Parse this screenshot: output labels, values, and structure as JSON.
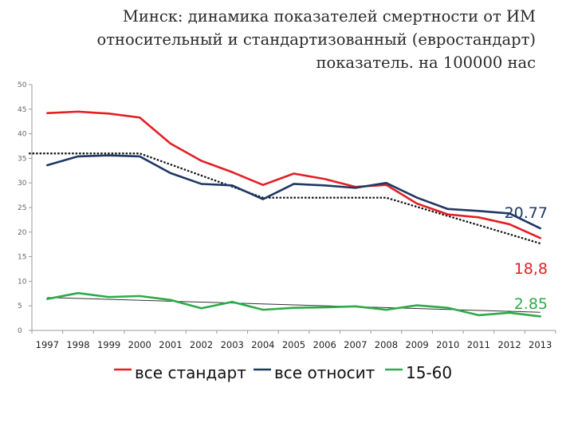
{
  "title": {
    "line1": "Минск: динамика показателей смертности от ИМ",
    "line2": "относительный и стандартизованный (евростандарт)",
    "line3": "показатель. на 100000 нас"
  },
  "chart_data": {
    "type": "line",
    "x": [
      "1997",
      "1998",
      "1999",
      "2000",
      "2001",
      "2002",
      "2003",
      "2004",
      "2005",
      "2006",
      "2007",
      "2008",
      "2009",
      "2010",
      "2011",
      "2012",
      "2013"
    ],
    "ylim": [
      0,
      50
    ],
    "yticks": [
      "0",
      "5",
      "10",
      "15",
      "20",
      "25",
      "30",
      "35",
      "40",
      "45",
      "50"
    ],
    "grid": false,
    "legend_position": "bottom",
    "series": [
      {
        "name": "все стандарт",
        "color": "#e31e24",
        "values": [
          44.2,
          44.5,
          44.1,
          43.3,
          38.0,
          34.5,
          32.2,
          29.6,
          31.9,
          30.8,
          29.2,
          29.6,
          25.8,
          23.6,
          23.0,
          21.6,
          18.8
        ]
      },
      {
        "name": "все относит",
        "color": "#1f3864",
        "values": [
          33.6,
          35.4,
          35.6,
          35.4,
          32.0,
          29.8,
          29.5,
          26.7,
          29.8,
          29.5,
          29.0,
          30.0,
          27.0,
          24.7,
          24.3,
          23.8,
          20.77
        ]
      },
      {
        "name": "15-60",
        "color": "#2eab4a",
        "values": [
          6.4,
          7.6,
          6.8,
          7.0,
          6.2,
          4.5,
          5.8,
          4.2,
          4.6,
          4.7,
          4.9,
          4.2,
          5.1,
          4.6,
          3.1,
          3.6,
          2.85
        ]
      }
    ],
    "trend_dotted": {
      "color": "#111111",
      "x": [
        -0.6,
        3.0,
        7.0,
        11.0,
        16.0
      ],
      "values": [
        36.0,
        36.0,
        27.0,
        27.0,
        17.7
      ]
    },
    "trend_solid": {
      "color": "#333333",
      "x": [
        0,
        16
      ],
      "values": [
        6.7,
        3.7
      ]
    },
    "end_labels": [
      {
        "text": "20.77",
        "color": "#1f3864"
      },
      {
        "text": "18,8",
        "color": "#e31e24"
      },
      {
        "text": "2.85",
        "color": "#2eab4a"
      }
    ]
  }
}
